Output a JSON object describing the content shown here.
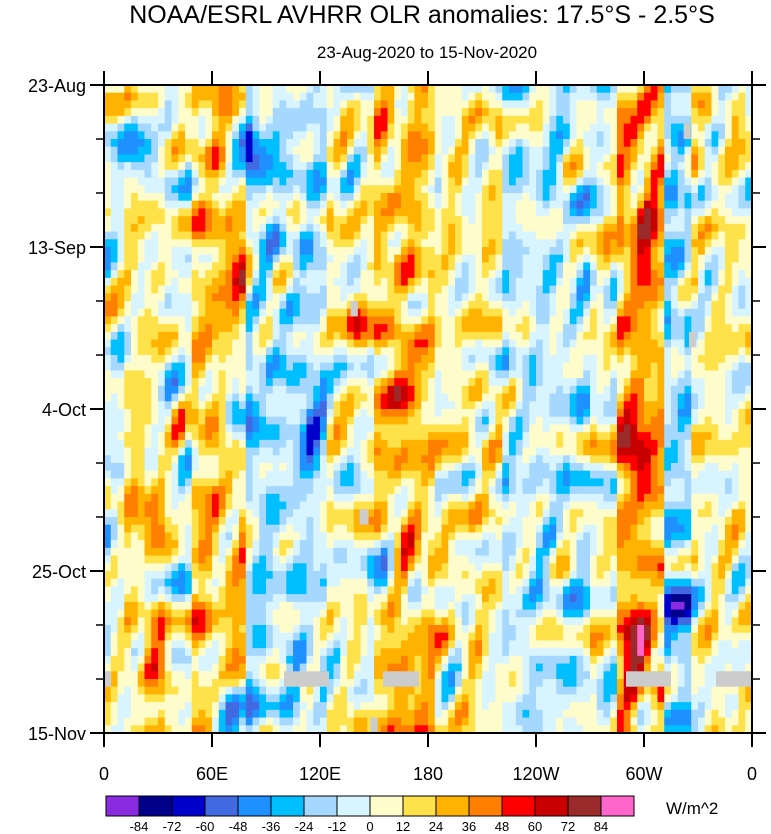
{
  "chart_data": {
    "type": "heatmap",
    "title": "NOAA/ESRL AVHRR OLR anomalies: 17.5°S - 2.5°S",
    "subtitle": "23-Aug-2020 to 15-Nov-2020",
    "x_axis": {
      "label": "",
      "range_deg_east": [
        0,
        360
      ],
      "ticks": [
        {
          "label": "0",
          "lon": 0
        },
        {
          "label": "60E",
          "lon": 60
        },
        {
          "label": "120E",
          "lon": 120
        },
        {
          "label": "180",
          "lon": 180
        },
        {
          "label": "120W",
          "lon": 240
        },
        {
          "label": "60W",
          "lon": 300
        },
        {
          "label": "0",
          "lon": 360
        }
      ]
    },
    "y_axis": {
      "label": "",
      "range_days": [
        0,
        84
      ],
      "direction": "time increases downward",
      "ticks": [
        {
          "label": "23-Aug",
          "day": 0
        },
        {
          "label": "13-Sep",
          "day": 21
        },
        {
          "label": "4-Oct",
          "day": 42
        },
        {
          "label": "25-Oct",
          "day": 63
        },
        {
          "label": "15-Nov",
          "day": 84
        }
      ],
      "minor_tick_days": [
        7,
        14,
        28,
        35,
        49,
        56,
        70,
        77
      ]
    },
    "colorbar": {
      "units": "W/m^2",
      "levels": [
        "-84",
        "-72",
        "-60",
        "-48",
        "-36",
        "-24",
        "-12",
        "0",
        "12",
        "24",
        "36",
        "48",
        "60",
        "72",
        "84"
      ],
      "colors": [
        "#8a2be2",
        "#00008b",
        "#0000cd",
        "#4169e1",
        "#1e90ff",
        "#00bfff",
        "#a6d8ff",
        "#d8f4ff",
        "#fffccc",
        "#ffe14a",
        "#ffb300",
        "#ff7f00",
        "#ff0000",
        "#c80000",
        "#9b2a2a",
        "#ff66cc"
      ]
    },
    "missing_color": "#cccccc",
    "field": {
      "description": "Hovmöller of OLR anomalies; positive (suppressed convection) bands near 60E-90E, 150E-180 and 70W-50W; negative (enhanced convection) patches near 20E, 75E-120E and 40W",
      "bands": [
        {
          "lon_start": 0,
          "lon_end": 10,
          "mean": 0
        },
        {
          "lon_start": 10,
          "lon_end": 35,
          "mean": 10
        },
        {
          "lon_start": 35,
          "lon_end": 50,
          "mean": 0
        },
        {
          "lon_start": 50,
          "lon_end": 80,
          "mean": 22
        },
        {
          "lon_start": 80,
          "lon_end": 125,
          "mean": -12
        },
        {
          "lon_start": 125,
          "lon_end": 150,
          "mean": 4
        },
        {
          "lon_start": 150,
          "lon_end": 185,
          "mean": 22
        },
        {
          "lon_start": 185,
          "lon_end": 220,
          "mean": 8
        },
        {
          "lon_start": 220,
          "lon_end": 270,
          "mean": -8
        },
        {
          "lon_start": 270,
          "lon_end": 285,
          "mean": 2
        },
        {
          "lon_start": 285,
          "lon_end": 310,
          "mean": 30
        },
        {
          "lon_start": 310,
          "lon_end": 325,
          "mean": -18
        },
        {
          "lon_start": 325,
          "lon_end": 360,
          "mean": 6
        }
      ],
      "blobs": [
        {
          "lon": 20,
          "day": 8,
          "value": -50
        },
        {
          "lon": 80,
          "day": 9,
          "value": -60
        },
        {
          "lon": 75,
          "day": 42,
          "value": -55
        },
        {
          "lon": 115,
          "day": 44,
          "value": -45
        },
        {
          "lon": 25,
          "day": 55,
          "value": 40
        },
        {
          "lon": 30,
          "day": 75,
          "value": 45
        },
        {
          "lon": 70,
          "day": 82,
          "value": -72
        },
        {
          "lon": 75,
          "day": 24,
          "value": 35
        },
        {
          "lon": 165,
          "day": 40,
          "value": 35
        },
        {
          "lon": 170,
          "day": 80,
          "value": 32
        },
        {
          "lon": 295,
          "day": 47,
          "value": 50
        },
        {
          "lon": 295,
          "day": 72,
          "value": 48
        },
        {
          "lon": 300,
          "day": 20,
          "value": 30
        },
        {
          "lon": 318,
          "day": 68,
          "value": -45
        },
        {
          "lon": 140,
          "day": 30,
          "value": 30
        },
        {
          "lon": 155,
          "day": 63,
          "value": -40
        }
      ],
      "missing_patches": [
        {
          "lon_start": 100,
          "lon_end": 125,
          "day_start": 76,
          "day_end": 78
        },
        {
          "lon_start": 155,
          "lon_end": 175,
          "day_start": 76,
          "day_end": 78
        },
        {
          "lon_start": 290,
          "lon_end": 315,
          "day_start": 76,
          "day_end": 78
        },
        {
          "lon_start": 340,
          "lon_end": 360,
          "day_start": 76,
          "day_end": 78
        },
        {
          "lon_start": 0,
          "lon_end": 4,
          "day_start": 76,
          "day_end": 78
        },
        {
          "lon_start": 137,
          "lon_end": 141,
          "day_start": 28,
          "day_end": 30
        },
        {
          "lon_start": 142,
          "lon_end": 147,
          "day_start": 55,
          "day_end": 57
        },
        {
          "lon_start": 322,
          "lon_end": 326,
          "day_start": 5,
          "day_end": 7
        },
        {
          "lon_start": 325,
          "lon_end": 329,
          "day_start": 32,
          "day_end": 34
        },
        {
          "lon_start": 148,
          "lon_end": 152,
          "day_start": 82,
          "day_end": 84
        }
      ]
    }
  }
}
